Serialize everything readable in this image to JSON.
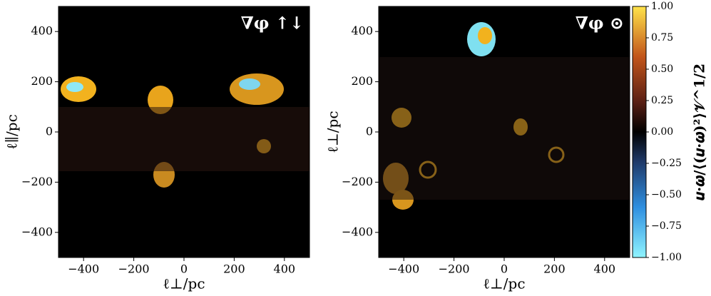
{
  "chart_data": [
    {
      "type": "image",
      "annotation": "∇φ ↑↓",
      "xlabel": "ℓ⊥/pc",
      "ylabel": "ℓ∥/pc",
      "xlim": [
        -500,
        500
      ],
      "ylim": [
        -500,
        500
      ],
      "xticks": [
        {
          "value": -400,
          "label": "−400"
        },
        {
          "value": -200,
          "label": "−200"
        },
        0,
        200,
        400
      ],
      "yticks": [
        {
          "value": -400,
          "label": "−400"
        },
        {
          "value": -200,
          "label": "−200"
        },
        0,
        200,
        400
      ]
    },
    {
      "type": "image",
      "annotation": "∇φ ⊙",
      "xlabel": "ℓ⊥/pc",
      "ylabel": "ℓ⊥/pc",
      "xlim": [
        -500,
        500
      ],
      "ylim": [
        -500,
        500
      ],
      "xticks": [
        {
          "value": -400,
          "label": "−400"
        },
        {
          "value": -200,
          "label": "−200"
        },
        0,
        200,
        400
      ],
      "yticks": [
        {
          "value": -400,
          "label": "−400"
        },
        {
          "value": -200,
          "label": "−200"
        },
        0,
        200,
        400
      ],
      "colorbar": {
        "label": "𝒖·𝝎/⟨(𝒖·𝝎)²⟩𝒱^1/2",
        "lim": [
          -1,
          1
        ],
        "ticks": [
          {
            "value": -1,
            "label": "−1.00"
          },
          {
            "value": -0.75,
            "label": "−0.75"
          },
          {
            "value": -0.5,
            "label": "−0.50"
          },
          {
            "value": -0.25,
            "label": "−0.25"
          },
          {
            "value": 0,
            "label": "0.00"
          },
          {
            "value": 0.25,
            "label": "0.25"
          },
          {
            "value": 0.5,
            "label": "0.50"
          },
          {
            "value": 0.75,
            "label": "0.75"
          },
          {
            "value": 1,
            "label": "1.00"
          }
        ]
      }
    }
  ]
}
